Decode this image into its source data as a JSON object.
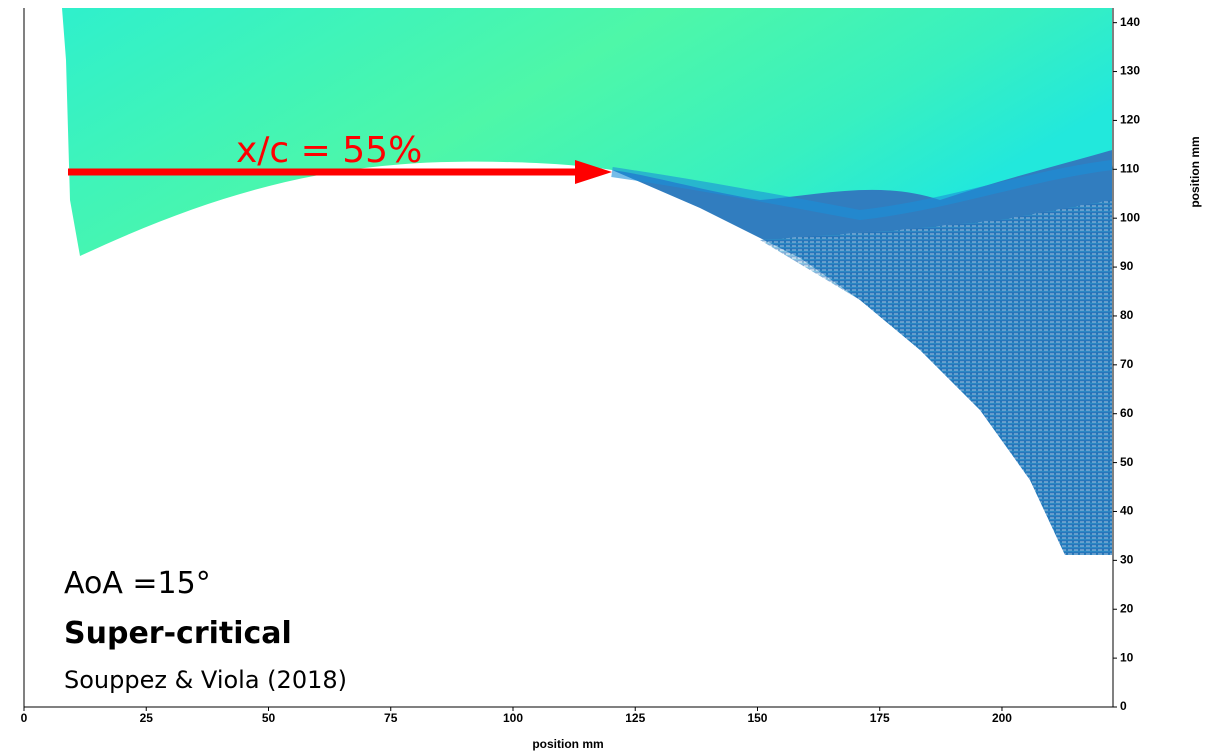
{
  "chart_data": {
    "type": "field",
    "xlim": [
      0,
      222.5
    ],
    "ylim": [
      0,
      143
    ],
    "xticks": [
      0,
      25,
      50,
      75,
      100,
      125,
      150,
      175,
      200
    ],
    "yticks": [
      0,
      10,
      20,
      30,
      40,
      50,
      60,
      70,
      80,
      90,
      100,
      110,
      120,
      130,
      140
    ],
    "xlabel": "position mm",
    "ylabel": "position mm",
    "annotations": [
      "x/c = 55%",
      "AoA =15°",
      "Super-critical",
      "Souppez & Viola (2018)"
    ]
  }
}
